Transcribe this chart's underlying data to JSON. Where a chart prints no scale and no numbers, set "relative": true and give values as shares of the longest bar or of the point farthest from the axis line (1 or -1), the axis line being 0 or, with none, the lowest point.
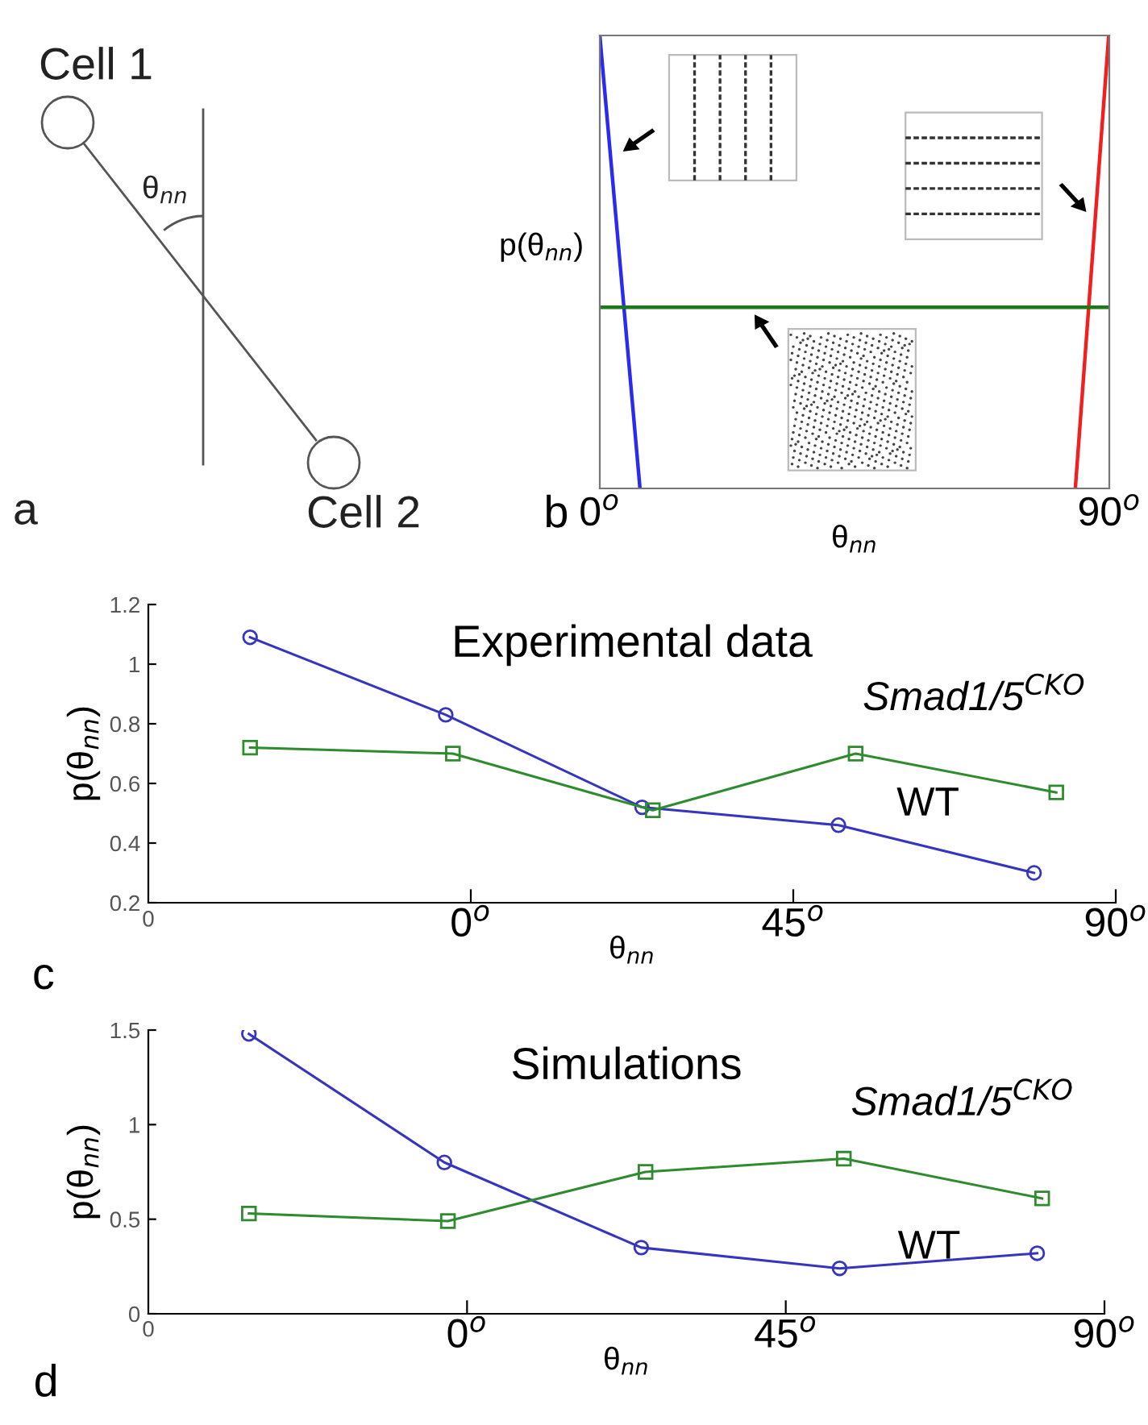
{
  "chart_data": [
    {
      "type": "other",
      "annotations": [
        "Cell 1",
        "θ$_{nn}$",
        "Cell 2",
        "a"
      ]
    },
    {
      "type": "line",
      "relative": true,
      "xlabel": "θ$_{nn}$",
      "ylabel": "p(θ$_{nn}$)",
      "xlim": [
        0,
        90
      ],
      "xticks": [
        {
          "value": 0,
          "label": "0$^{o}$"
        },
        {
          "value": 90,
          "label": "90$^{o}$"
        }
      ],
      "tick_labels": "x",
      "annotations": [
        "b"
      ],
      "series": [
        {
          "color": "#2a2af0",
          "x": [
            0,
            7.1
          ],
          "values": [
            1,
            0
          ]
        },
        {
          "color": "#f02020",
          "x": [
            84,
            89.9
          ],
          "values": [
            0,
            1
          ]
        },
        {
          "color": "#1a7a1a",
          "x": [
            0,
            90
          ],
          "values": [
            0.4,
            0.4
          ]
        }
      ]
    },
    {
      "type": "line",
      "title": "Experimental data",
      "xlabel": "θ$_{nn}$",
      "ylabel": "p(θ$_{nn}$)",
      "xlim": [
        -45,
        90
      ],
      "xticks": [
        {
          "value": 0,
          "label": "0$^{o}$"
        },
        {
          "value": 45,
          "label": "45$^{o}$"
        },
        {
          "value": 90,
          "label": "90$^{o}$"
        }
      ],
      "ylim": [
        0.2,
        1.2
      ],
      "yticks": [
        0.2,
        0.4,
        0.6,
        0.8,
        1,
        1.2
      ],
      "annotations": [
        "c",
        "0"
      ],
      "series": [
        {
          "name": "WT",
          "color": "#3535c0",
          "marker": "circle",
          "x": [
            -30.8,
            -3.5,
            23.9,
            51.3,
            78.6
          ],
          "values": [
            1.09,
            0.83,
            0.52,
            0.46,
            0.3
          ]
        },
        {
          "name": "Smad1/5$^{CKO}$",
          "color": "#2e8b2e",
          "marker": "square",
          "x": [
            -30.8,
            -2.5,
            25.4,
            53.7,
            81.7
          ],
          "values": [
            0.72,
            0.7,
            0.51,
            0.7,
            0.57
          ]
        }
      ]
    },
    {
      "type": "line",
      "title": "Simulations",
      "xlabel": "θ$_{nn}$",
      "ylabel": "p(θ$_{nn}$)",
      "xlim": [
        -45,
        90
      ],
      "xticks": [
        {
          "value": 0,
          "label": "0$^{o}$"
        },
        {
          "value": 45,
          "label": "45$^{o}$"
        },
        {
          "value": 90,
          "label": "90$^{o}$"
        }
      ],
      "ylim": [
        0,
        1.5
      ],
      "yticks": [
        0,
        0.5,
        1,
        1.5
      ],
      "annotations": [
        "d",
        "0"
      ],
      "series": [
        {
          "name": "WT",
          "color": "#3535c0",
          "marker": "circle",
          "x": [
            -30.8,
            -3.2,
            24.6,
            52.6,
            80.5
          ],
          "values": [
            1.48,
            0.8,
            0.35,
            0.24,
            0.32
          ]
        },
        {
          "name": "Smad1/5$^{CKO}$",
          "color": "#2e8b2e",
          "marker": "square",
          "x": [
            -30.8,
            -2.7,
            25.2,
            53.2,
            81.2
          ],
          "values": [
            0.53,
            0.49,
            0.75,
            0.82,
            0.61
          ]
        }
      ]
    }
  ]
}
